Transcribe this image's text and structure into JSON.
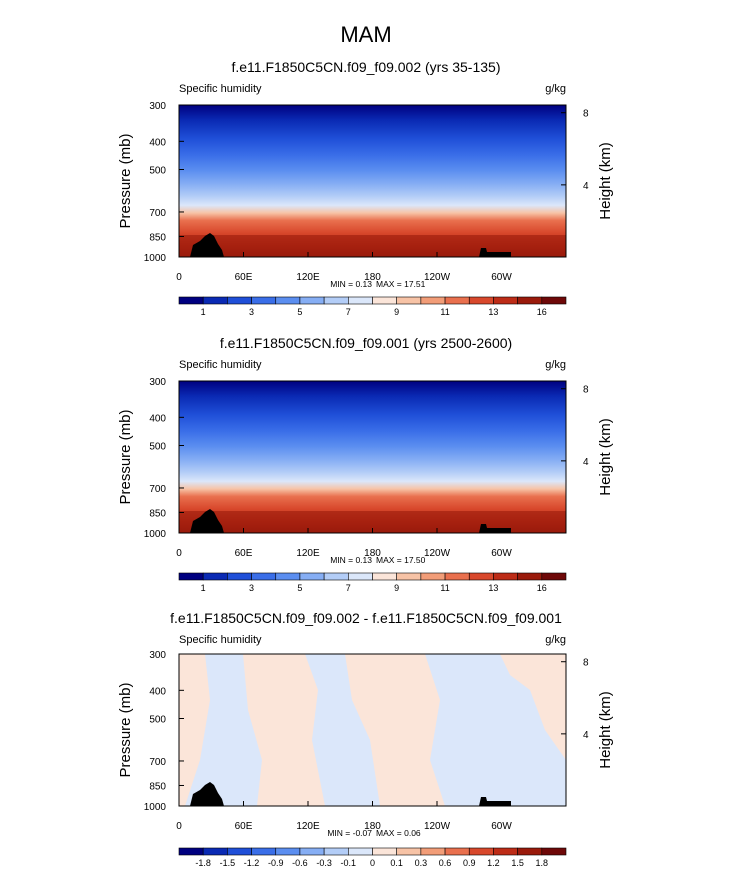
{
  "main_title": "MAM",
  "chart_data": [
    {
      "type": "heatmap",
      "title": "f.e11.F1850C5CN.f09_f09.002 (yrs 35-135)",
      "variable": "Specific humidity",
      "units": "g/kg",
      "ylabel": "Pressure (mb)",
      "ylabel_right": "Height (km)",
      "xlabel": "",
      "x_ticks": [
        "0",
        "60E",
        "120E",
        "180",
        "120W",
        "60W"
      ],
      "x_tick_values": [
        0,
        60,
        120,
        180,
        240,
        300
      ],
      "xlim": [
        0,
        360
      ],
      "y_ticks": [
        "300",
        "400",
        "500",
        "700",
        "850",
        "1000"
      ],
      "y_tick_values": [
        300,
        400,
        500,
        700,
        850,
        1000
      ],
      "ylim": [
        1000,
        300
      ],
      "y_right_ticks": [
        "8",
        "4"
      ],
      "y_right_tick_values": [
        8,
        4
      ],
      "min_text": "MIN =  0.13",
      "max_text": "MAX =  17.51",
      "min": 0.13,
      "max": 17.51,
      "colorbar": {
        "labels": [
          "1",
          "3",
          "5",
          "7",
          "9",
          "11",
          "13",
          "16"
        ],
        "colors": [
          "#000080",
          "#0a2ab4",
          "#1f4fd8",
          "#3a6ee8",
          "#5b8ef0",
          "#86aef4",
          "#b3cdf7",
          "#dbe7fa",
          "#fbe5d9",
          "#f7c3a6",
          "#f29d78",
          "#e9704e",
          "#d8482c",
          "#bd2c17",
          "#9a1a0b",
          "#6e0808"
        ]
      }
    },
    {
      "type": "heatmap",
      "title": "f.e11.F1850C5CN.f09_f09.001 (yrs 2500-2600)",
      "variable": "Specific humidity",
      "units": "g/kg",
      "ylabel": "Pressure (mb)",
      "ylabel_right": "Height (km)",
      "xlabel": "",
      "x_ticks": [
        "0",
        "60E",
        "120E",
        "180",
        "120W",
        "60W"
      ],
      "x_tick_values": [
        0,
        60,
        120,
        180,
        240,
        300
      ],
      "xlim": [
        0,
        360
      ],
      "y_ticks": [
        "300",
        "400",
        "500",
        "700",
        "850",
        "1000"
      ],
      "y_tick_values": [
        300,
        400,
        500,
        700,
        850,
        1000
      ],
      "ylim": [
        1000,
        300
      ],
      "y_right_ticks": [
        "8",
        "4"
      ],
      "y_right_tick_values": [
        8,
        4
      ],
      "min_text": "MIN =  0.13",
      "max_text": "MAX =  17.50",
      "min": 0.13,
      "max": 17.5,
      "colorbar": {
        "labels": [
          "1",
          "3",
          "5",
          "7",
          "9",
          "11",
          "13",
          "16"
        ],
        "colors": [
          "#000080",
          "#0a2ab4",
          "#1f4fd8",
          "#3a6ee8",
          "#5b8ef0",
          "#86aef4",
          "#b3cdf7",
          "#dbe7fa",
          "#fbe5d9",
          "#f7c3a6",
          "#f29d78",
          "#e9704e",
          "#d8482c",
          "#bd2c17",
          "#9a1a0b",
          "#6e0808"
        ]
      }
    },
    {
      "type": "heatmap",
      "title": "f.e11.F1850C5CN.f09_f09.002 - f.e11.F1850C5CN.f09_f09.001",
      "variable": "Specific humidity",
      "units": "g/kg",
      "ylabel": "Pressure (mb)",
      "ylabel_right": "Height (km)",
      "xlabel": "",
      "x_ticks": [
        "0",
        "60E",
        "120E",
        "180",
        "120W",
        "60W"
      ],
      "x_tick_values": [
        0,
        60,
        120,
        180,
        240,
        300
      ],
      "xlim": [
        0,
        360
      ],
      "y_ticks": [
        "300",
        "400",
        "500",
        "700",
        "850",
        "1000"
      ],
      "y_tick_values": [
        300,
        400,
        500,
        700,
        850,
        1000
      ],
      "ylim": [
        1000,
        300
      ],
      "y_right_ticks": [
        "8",
        "4"
      ],
      "y_right_tick_values": [
        8,
        4
      ],
      "min_text": "MIN = -0.07",
      "max_text": "MAX =  0.06",
      "min": -0.07,
      "max": 0.06,
      "colorbar": {
        "labels": [
          "-1.8",
          "-1.5",
          "-1.2",
          "-0.9",
          "-0.6",
          "-0.3",
          "-0.1",
          "0",
          "0.1",
          "0.3",
          "0.6",
          "0.9",
          "1.2",
          "1.5",
          "1.8"
        ],
        "colors": [
          "#000080",
          "#0a2ab4",
          "#1f4fd8",
          "#3a6ee8",
          "#5b8ef0",
          "#86aef4",
          "#b3cdf7",
          "#dbe7fa",
          "#fbe5d9",
          "#f7c3a6",
          "#f29d78",
          "#e9704e",
          "#d8482c",
          "#bd2c17",
          "#9a1a0b",
          "#6e0808"
        ]
      }
    }
  ]
}
